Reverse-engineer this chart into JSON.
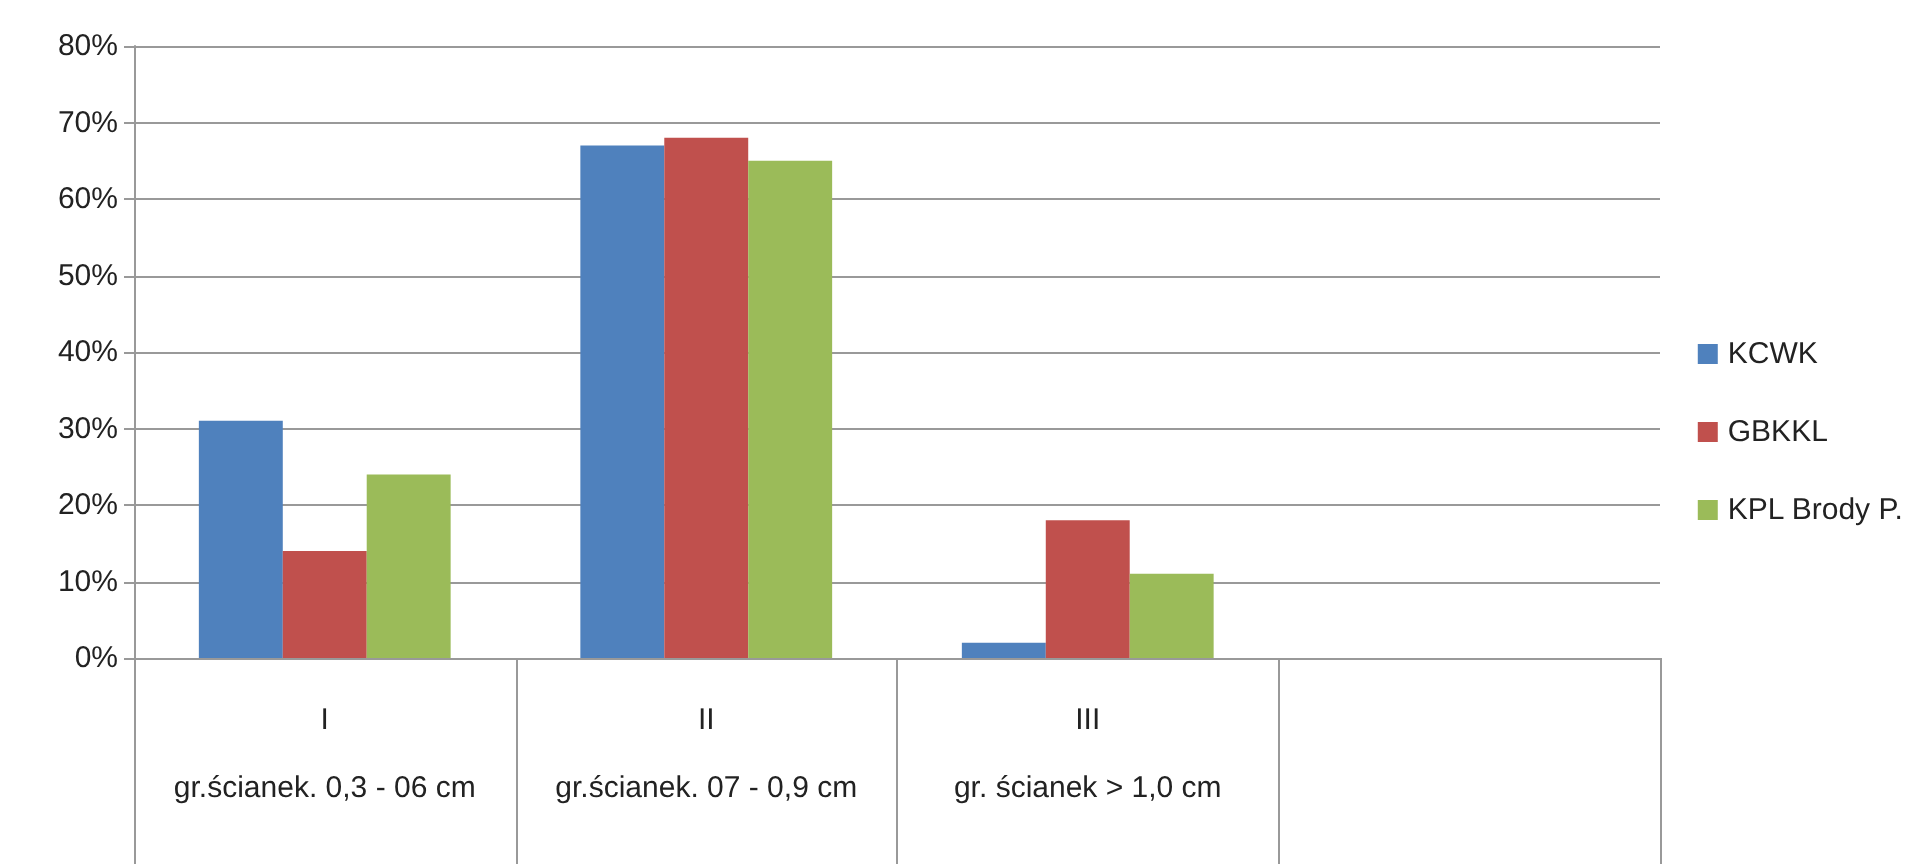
{
  "chart_data": {
    "type": "bar",
    "categories": [
      "I\ngr.ścianek. 0,3 - 06 cm",
      "II\ngr.ścianek. 07 - 0,9 cm",
      "III\ngr. ścianek > 1,0 cm",
      null
    ],
    "series": [
      {
        "name": "KCWK",
        "color": "#4f81bd",
        "values": [
          31,
          67,
          2,
          null
        ]
      },
      {
        "name": "GBKKL",
        "color": "#c0504d",
        "values": [
          14,
          68,
          18,
          null
        ]
      },
      {
        "name": "KPL Brody P.",
        "color": "#9bbb59",
        "values": [
          24,
          65,
          11,
          null
        ]
      }
    ],
    "ylim": [
      0,
      80
    ],
    "yticks": [
      {
        "value": 0,
        "label": "0%"
      },
      {
        "value": 10,
        "label": "10%"
      },
      {
        "value": 20,
        "label": "20%"
      },
      {
        "value": 30,
        "label": "30%"
      },
      {
        "value": 40,
        "label": "40%"
      },
      {
        "value": 50,
        "label": "50%"
      },
      {
        "value": 60,
        "label": "60%"
      },
      {
        "value": 70,
        "label": "70%"
      },
      {
        "value": 80,
        "label": "80%"
      }
    ],
    "grid": "y",
    "legend": "right"
  }
}
